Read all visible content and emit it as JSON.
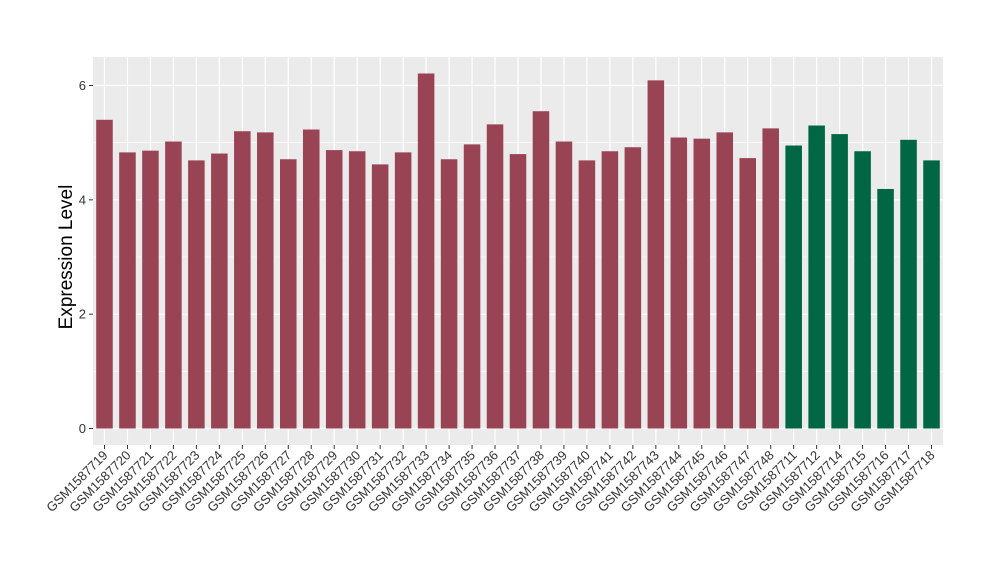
{
  "chart_data": {
    "type": "bar",
    "title": "",
    "xlabel": "",
    "ylabel": "Expression Level",
    "ylim": [
      0,
      6.5
    ],
    "yticks": [
      0,
      2,
      4,
      6
    ],
    "grid": true,
    "legend": "none",
    "colors": {
      "group_a": "#994455",
      "group_b": "#006644",
      "panel": "#ebebeb",
      "gridline": "#ffffff"
    },
    "categories": [
      "GSM1587719",
      "GSM1587720",
      "GSM1587721",
      "GSM1587722",
      "GSM1587723",
      "GSM1587724",
      "GSM1587725",
      "GSM1587726",
      "GSM1587727",
      "GSM1587728",
      "GSM1587729",
      "GSM1587730",
      "GSM1587731",
      "GSM1587732",
      "GSM1587733",
      "GSM1587734",
      "GSM1587735",
      "GSM1587736",
      "GSM1587737",
      "GSM1587738",
      "GSM1587739",
      "GSM1587740",
      "GSM1587741",
      "GSM1587742",
      "GSM1587743",
      "GSM1587744",
      "GSM1587745",
      "GSM1587746",
      "GSM1587747",
      "GSM1587748",
      "GSM1587711",
      "GSM1587712",
      "GSM1587714",
      "GSM1587715",
      "GSM1587716",
      "GSM1587717",
      "GSM1587718"
    ],
    "values": [
      5.4,
      4.83,
      4.86,
      5.02,
      4.69,
      4.81,
      5.2,
      5.18,
      4.71,
      5.23,
      4.87,
      4.85,
      4.62,
      4.83,
      6.21,
      4.71,
      4.97,
      5.32,
      4.8,
      5.55,
      5.02,
      4.69,
      4.85,
      4.92,
      6.09,
      5.09,
      5.07,
      5.18,
      4.73,
      5.25,
      4.95,
      5.3,
      5.15,
      4.85,
      4.19,
      5.05,
      4.69
    ],
    "groups": [
      "a",
      "a",
      "a",
      "a",
      "a",
      "a",
      "a",
      "a",
      "a",
      "a",
      "a",
      "a",
      "a",
      "a",
      "a",
      "a",
      "a",
      "a",
      "a",
      "a",
      "a",
      "a",
      "a",
      "a",
      "a",
      "a",
      "a",
      "a",
      "a",
      "a",
      "b",
      "b",
      "b",
      "b",
      "b",
      "b",
      "b"
    ]
  }
}
